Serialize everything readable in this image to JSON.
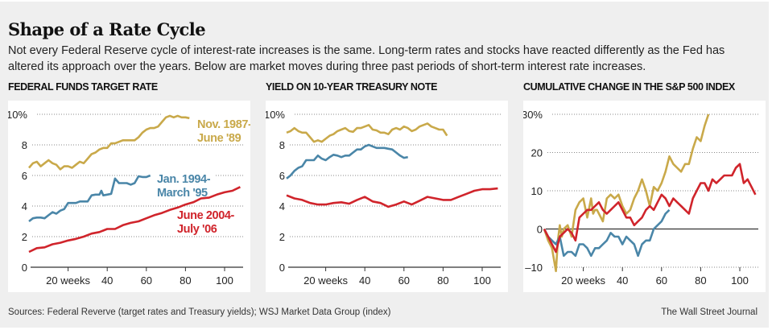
{
  "header": {
    "title": "Shape of a Rate Cycle",
    "subtitle": "Not every Federal Reserve cycle of interest-rate increases is the same. Long-term rates and stocks have reacted differently as the Fed has altered its approach over the years. Below are market moves during three past periods of short-term interest rate increases."
  },
  "footer": {
    "source": "Sources: Federal Reverve (target rates and Treasury yields); WSJ Market Data Group (index)",
    "credit": "The Wall Street Journal"
  },
  "colors": {
    "gold": "#c9a94a",
    "blue": "#4a86a8",
    "red": "#d0242b",
    "grid": "#888888",
    "axis": "#333333"
  },
  "chart_data": [
    {
      "type": "line",
      "title": "FEDERAL FUNDS TARGET RATE",
      "xlabel": "weeks",
      "ylabel": "",
      "xlim": [
        0,
        108
      ],
      "ylim": [
        0,
        10
      ],
      "x_ticks": [
        20,
        40,
        60,
        80,
        100
      ],
      "x_tick_labels": [
        "20 weeks",
        "40",
        "60",
        "80",
        "100"
      ],
      "y_ticks": [
        0,
        2,
        4,
        6,
        8,
        10
      ],
      "y_tick_labels": [
        "0",
        "2",
        "4",
        "6",
        "8",
        "10%"
      ],
      "grid": true,
      "series": [
        {
          "name": "Nov. 1987-June '89",
          "label_lines": [
            "Nov. 1987-",
            "June '89"
          ],
          "color": "gold",
          "x": [
            0,
            2,
            4,
            6,
            8,
            10,
            12,
            14,
            16,
            18,
            20,
            22,
            24,
            26,
            28,
            30,
            32,
            34,
            36,
            38,
            40,
            42,
            44,
            46,
            48,
            50,
            52,
            54,
            56,
            58,
            60,
            62,
            64,
            66,
            68,
            70,
            72,
            74,
            76,
            78,
            80,
            82
          ],
          "values": [
            6.5,
            6.8,
            6.9,
            6.6,
            6.8,
            7.0,
            6.8,
            6.7,
            6.4,
            6.6,
            6.6,
            6.5,
            6.7,
            6.9,
            6.8,
            7.1,
            7.4,
            7.5,
            7.7,
            7.8,
            7.8,
            8.1,
            8.1,
            8.2,
            8.3,
            8.3,
            8.3,
            8.3,
            8.5,
            8.8,
            9.0,
            9.1,
            9.1,
            9.2,
            9.5,
            9.8,
            9.9,
            9.8,
            9.9,
            9.8,
            9.8,
            9.75
          ]
        },
        {
          "name": "Jan. 1994-March '95",
          "label_lines": [
            "Jan. 1994-",
            "March '95"
          ],
          "color": "blue",
          "x": [
            0,
            2,
            4,
            6,
            8,
            10,
            12,
            14,
            16,
            18,
            20,
            22,
            24,
            26,
            28,
            30,
            32,
            34,
            36,
            37,
            38,
            40,
            42,
            44,
            46,
            48,
            50,
            52,
            54,
            56,
            58,
            60,
            62
          ],
          "values": [
            3.0,
            3.2,
            3.25,
            3.25,
            3.2,
            3.4,
            3.6,
            3.5,
            3.7,
            3.8,
            4.2,
            4.2,
            4.2,
            4.3,
            4.3,
            4.3,
            4.7,
            4.75,
            4.75,
            5.0,
            4.7,
            4.75,
            4.8,
            5.8,
            5.5,
            5.5,
            5.5,
            5.4,
            5.5,
            5.95,
            5.9,
            5.9,
            6.0
          ]
        },
        {
          "name": "June 2004-July '06",
          "label_lines": [
            "June 2004-",
            "July '06"
          ],
          "color": "red",
          "x": [
            0,
            4,
            8,
            12,
            16,
            20,
            24,
            28,
            32,
            36,
            40,
            44,
            48,
            52,
            56,
            60,
            64,
            68,
            72,
            76,
            80,
            84,
            88,
            92,
            96,
            100,
            104,
            108
          ],
          "values": [
            1.0,
            1.25,
            1.3,
            1.5,
            1.6,
            1.75,
            1.85,
            2.0,
            2.2,
            2.3,
            2.5,
            2.5,
            2.75,
            2.9,
            3.0,
            3.2,
            3.4,
            3.55,
            3.75,
            3.9,
            4.1,
            4.25,
            4.5,
            4.55,
            4.75,
            4.9,
            5.0,
            5.25
          ]
        }
      ]
    },
    {
      "type": "line",
      "title": "YIELD ON 10-YEAR TREASURY NOTE",
      "xlabel": "weeks",
      "ylabel": "",
      "xlim": [
        0,
        108
      ],
      "ylim": [
        0,
        10
      ],
      "x_ticks": [
        20,
        40,
        60,
        80,
        100
      ],
      "x_tick_labels": [
        "20 weeks",
        "40",
        "60",
        "80",
        "100"
      ],
      "y_ticks": [
        0,
        2,
        4,
        6,
        8,
        10
      ],
      "y_tick_labels": [
        "0",
        "2",
        "4",
        "6",
        "8",
        "10%"
      ],
      "grid": true,
      "series": [
        {
          "name": "Nov. 1987-June '89",
          "color": "gold",
          "x": [
            0,
            2,
            4,
            6,
            8,
            10,
            12,
            14,
            16,
            18,
            20,
            22,
            24,
            26,
            28,
            30,
            32,
            34,
            36,
            38,
            40,
            42,
            44,
            46,
            48,
            50,
            52,
            54,
            56,
            58,
            60,
            62,
            64,
            66,
            68,
            70,
            72,
            74,
            76,
            78,
            80,
            82
          ],
          "values": [
            8.8,
            8.9,
            9.1,
            8.9,
            8.8,
            8.8,
            8.5,
            8.2,
            8.3,
            8.2,
            8.4,
            8.6,
            8.7,
            8.9,
            9.0,
            9.1,
            8.9,
            8.85,
            9.1,
            9.1,
            9.2,
            9.3,
            9.0,
            8.95,
            8.8,
            8.8,
            8.7,
            9.0,
            9.1,
            9.0,
            9.2,
            9.1,
            8.9,
            9.0,
            9.2,
            9.3,
            9.4,
            9.2,
            9.1,
            9.0,
            9.0,
            8.6
          ]
        },
        {
          "name": "Jan. 1994-March '95",
          "color": "blue",
          "x": [
            0,
            2,
            4,
            6,
            8,
            10,
            12,
            14,
            16,
            18,
            20,
            22,
            24,
            26,
            28,
            30,
            32,
            34,
            36,
            38,
            40,
            42,
            44,
            46,
            48,
            50,
            52,
            54,
            56,
            58,
            60,
            62
          ],
          "values": [
            5.8,
            6.0,
            6.3,
            6.5,
            6.6,
            7.0,
            7.0,
            7.0,
            7.3,
            7.1,
            7.0,
            7.2,
            7.35,
            7.3,
            7.2,
            7.3,
            7.3,
            7.5,
            7.7,
            7.7,
            7.9,
            8.0,
            7.9,
            7.8,
            7.8,
            7.8,
            7.75,
            7.7,
            7.5,
            7.3,
            7.15,
            7.2
          ]
        },
        {
          "name": "June 2004-July '06",
          "color": "red",
          "x": [
            0,
            4,
            8,
            12,
            16,
            20,
            24,
            28,
            32,
            36,
            40,
            44,
            48,
            52,
            56,
            60,
            64,
            68,
            72,
            76,
            80,
            84,
            88,
            92,
            96,
            100,
            104,
            108
          ],
          "values": [
            4.7,
            4.5,
            4.4,
            4.2,
            4.1,
            4.1,
            4.2,
            4.25,
            4.15,
            4.4,
            4.6,
            4.3,
            4.2,
            3.95,
            4.1,
            4.3,
            4.1,
            4.35,
            4.6,
            4.5,
            4.4,
            4.4,
            4.6,
            4.8,
            5.0,
            5.1,
            5.1,
            5.15
          ]
        }
      ]
    },
    {
      "type": "line",
      "title": "CUMULATIVE CHANGE IN THE S&P 500 INDEX",
      "xlabel": "weeks",
      "ylabel": "",
      "xlim": [
        0,
        108
      ],
      "ylim": [
        -10,
        30
      ],
      "x_ticks": [
        20,
        40,
        60,
        80,
        100
      ],
      "x_tick_labels": [
        "20 weeks",
        "40",
        "60",
        "80",
        "100"
      ],
      "y_ticks": [
        -10,
        0,
        10,
        20,
        30
      ],
      "y_tick_labels": [
        "–10",
        "0",
        "10",
        "20",
        "30%"
      ],
      "grid": true,
      "series": [
        {
          "name": "Nov. 1987-June '89",
          "color": "gold",
          "x": [
            0,
            2,
            4,
            6,
            7,
            8,
            9,
            10,
            12,
            14,
            16,
            18,
            20,
            22,
            24,
            25,
            26,
            27,
            28,
            30,
            32,
            34,
            36,
            38,
            40,
            42,
            44,
            46,
            48,
            50,
            52,
            54,
            56,
            58,
            60,
            62,
            64,
            66,
            68,
            70,
            72,
            74,
            76,
            78,
            80,
            82,
            84
          ],
          "values": [
            0,
            -3,
            -5,
            -11,
            -3,
            1,
            -2,
            0,
            1,
            -2,
            5,
            7,
            8,
            3,
            8,
            4,
            5,
            5,
            4,
            2,
            8,
            9,
            8,
            9,
            6,
            4,
            5,
            8,
            10,
            13,
            10,
            6,
            11,
            10,
            12,
            15,
            19,
            17,
            16,
            15,
            17,
            17,
            21,
            24,
            23,
            27,
            30
          ]
        },
        {
          "name": "Jan. 1994-March '95",
          "color": "blue",
          "x": [
            0,
            2,
            4,
            6,
            8,
            10,
            12,
            14,
            16,
            18,
            20,
            22,
            24,
            26,
            28,
            30,
            32,
            34,
            36,
            38,
            40,
            42,
            44,
            46,
            48,
            50,
            52,
            54,
            56,
            58,
            60,
            62,
            64
          ],
          "values": [
            0,
            -2,
            -3,
            -4,
            -2,
            -7,
            -6,
            -6,
            -7,
            -4,
            -4,
            -5,
            -7,
            -5,
            -5,
            -4,
            -3,
            -1,
            -2,
            -2,
            -4,
            -2,
            -3,
            -4,
            -7,
            -4,
            -3,
            -3,
            0,
            1,
            2,
            4,
            5
          ]
        },
        {
          "name": "June 2004-July '06",
          "color": "red",
          "x": [
            0,
            2,
            4,
            6,
            8,
            10,
            12,
            14,
            16,
            18,
            20,
            22,
            24,
            26,
            28,
            30,
            32,
            34,
            36,
            38,
            40,
            42,
            44,
            46,
            48,
            50,
            52,
            54,
            56,
            58,
            60,
            62,
            64,
            66,
            68,
            70,
            72,
            74,
            76,
            78,
            80,
            82,
            84,
            86,
            88,
            90,
            92,
            94,
            96,
            98,
            100,
            102,
            104,
            106,
            108
          ],
          "values": [
            0,
            -2,
            -4,
            -6,
            -2,
            -1,
            0,
            -1,
            -3,
            3,
            4,
            5,
            5,
            6,
            7,
            5,
            4,
            5,
            6,
            7,
            5,
            3,
            3,
            1,
            2,
            3,
            5,
            6,
            5,
            7,
            9,
            8,
            6,
            8,
            7,
            6,
            5,
            4,
            8,
            10,
            12,
            12,
            10,
            13,
            12,
            13,
            14,
            14,
            14,
            16,
            17,
            12,
            13,
            11,
            9
          ]
        }
      ]
    }
  ]
}
